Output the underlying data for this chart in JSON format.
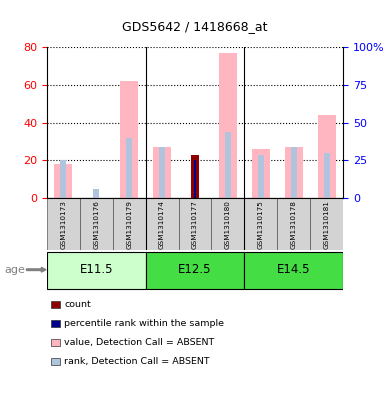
{
  "title": "GDS5642 / 1418668_at",
  "samples": [
    "GSM1310173",
    "GSM1310176",
    "GSM1310179",
    "GSM1310174",
    "GSM1310177",
    "GSM1310180",
    "GSM1310175",
    "GSM1310178",
    "GSM1310181"
  ],
  "value_absent": [
    18,
    0,
    62,
    27,
    0,
    77,
    26,
    27,
    44
  ],
  "rank_absent": [
    20,
    5,
    32,
    27,
    0,
    35,
    23,
    27,
    24
  ],
  "count_val": [
    0,
    0,
    0,
    0,
    23,
    0,
    0,
    0,
    0
  ],
  "percentile_val": [
    0,
    0,
    0,
    0,
    20,
    0,
    0,
    0,
    0
  ],
  "ylim_left": [
    0,
    80
  ],
  "ylim_right": [
    0,
    100
  ],
  "yticks_left": [
    0,
    20,
    40,
    60,
    80
  ],
  "yticks_right": [
    0,
    25,
    50,
    75,
    100
  ],
  "color_value_absent": "#FFB6C1",
  "color_rank_absent": "#B0C4DE",
  "color_count": "#8B0000",
  "color_percentile": "#00008B",
  "bg_color": "#FFFFFF",
  "group_defs": [
    {
      "label": "E11.5",
      "start": 0,
      "end": 2,
      "color": "#CCFFCC"
    },
    {
      "label": "E12.5",
      "start": 3,
      "end": 5,
      "color": "#44DD44"
    },
    {
      "label": "E14.5",
      "start": 6,
      "end": 8,
      "color": "#44DD44"
    }
  ],
  "legend_items": [
    {
      "label": "count",
      "color": "#8B0000"
    },
    {
      "label": "percentile rank within the sample",
      "color": "#00008B"
    },
    {
      "label": "value, Detection Call = ABSENT",
      "color": "#FFB6C1"
    },
    {
      "label": "rank, Detection Call = ABSENT",
      "color": "#B0C4DE"
    }
  ]
}
